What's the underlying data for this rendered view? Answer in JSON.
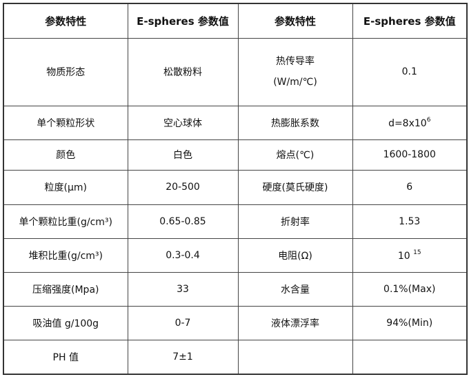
{
  "headers": [
    "参数特性",
    "E-spheres 参数值",
    "参数特性",
    "E-spheres 参数值"
  ],
  "rows": [
    {
      "p1": "物质形态",
      "v1": "松散粉料",
      "p2_line1": "热传导率",
      "p2_line2": "(W/m/℃)",
      "v2": "0.1"
    },
    {
      "p1": "单个颗粒形状",
      "v1": "空心球体",
      "p2": "热膨胀系数",
      "v2": "d=8x10",
      "v2_sup": "6"
    },
    {
      "p1": "颜色",
      "v1": "白色",
      "p2": "熔点(℃)",
      "v2": "1600-1800"
    },
    {
      "p1": "粒度(μm)",
      "v1": "20-500",
      "p2": "硬度(莫氏硬度)",
      "v2": "6"
    },
    {
      "p1": "单个颗粒比重(g/cm³)",
      "v1": "0.65-0.85",
      "p2": "折射率",
      "v2": "1.53"
    },
    {
      "p1": "堆积比重(g/cm³)",
      "v1": "0.3-0.4",
      "p2": "电阻(Ω)",
      "v2": "10 ",
      "v2_sup": "15"
    },
    {
      "p1": "压缩强度(Mpa)",
      "v1": "33",
      "p2": "水含量",
      "v2": "0.1%(Max)"
    },
    {
      "p1": "吸油值 g/100g",
      "v1": "0-7",
      "p2": "液体漂浮率",
      "v2": "94%(Min)"
    },
    {
      "p1": "PH 值",
      "v1": "7±1",
      "p2": "",
      "v2": ""
    }
  ]
}
